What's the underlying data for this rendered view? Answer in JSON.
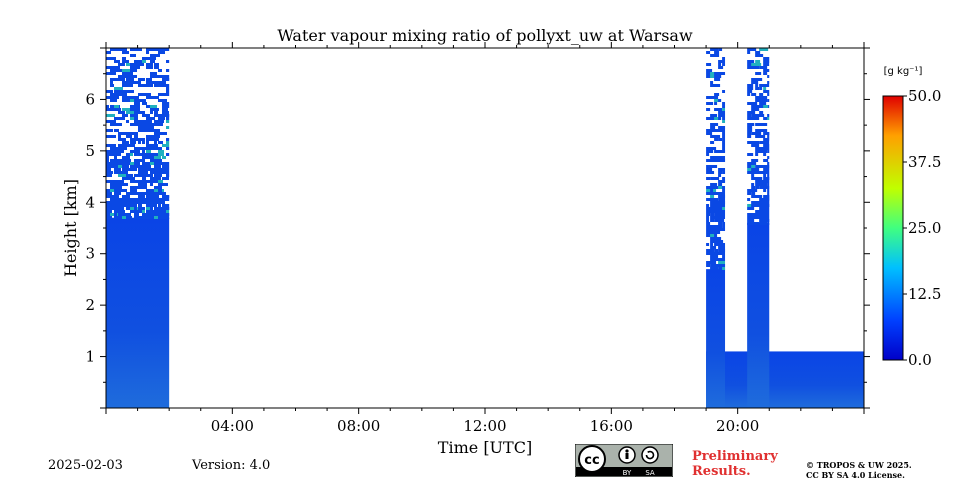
{
  "chart_data": {
    "type": "heatmap",
    "title": "Water vapour mixing ratio of pollyxt_uw at Warsaw",
    "xlabel": "Time [UTC]",
    "ylabel": "Height [km]",
    "xlim": [
      0,
      24
    ],
    "ylim": [
      0,
      7
    ],
    "x_ticks": [
      {
        "value": 4,
        "label": "04:00"
      },
      {
        "value": 8,
        "label": "08:00"
      },
      {
        "value": 12,
        "label": "12:00"
      },
      {
        "value": 16,
        "label": "16:00"
      },
      {
        "value": 20,
        "label": "20:00"
      }
    ],
    "y_ticks": [
      {
        "value": 1,
        "label": "1"
      },
      {
        "value": 2,
        "label": "2"
      },
      {
        "value": 3,
        "label": "3"
      },
      {
        "value": 4,
        "label": "4"
      },
      {
        "value": 5,
        "label": "5"
      },
      {
        "value": 6,
        "label": "6"
      }
    ],
    "colorbar": {
      "unit_label": "[g kg⁻¹]",
      "range": [
        0,
        50
      ],
      "ticks": [
        {
          "value": 0,
          "label": "0.0"
        },
        {
          "value": 12.5,
          "label": "12.5"
        },
        {
          "value": 25,
          "label": "25.0"
        },
        {
          "value": 37.5,
          "label": "37.5"
        },
        {
          "value": 50,
          "label": "50.0"
        }
      ],
      "colormap": "jet"
    },
    "data_regions": [
      {
        "name": "early-block",
        "x_start": 0,
        "x_end": 2.0,
        "solid_top_km": 3.7,
        "sparse_top_km": 7.0,
        "value": 3
      },
      {
        "name": "late-lower-block",
        "x_start": 19.0,
        "x_end": 24.0,
        "solid_top_km": 1.1,
        "value": 5
      },
      {
        "name": "late-column-1",
        "x_start": 19.0,
        "x_end": 19.6,
        "solid_top_km": 2.7,
        "sparse_top_km": 7.0,
        "value": 5
      },
      {
        "name": "late-column-2",
        "x_start": 20.3,
        "x_end": 21.0,
        "solid_top_km": 3.6,
        "sparse_top_km": 7.0,
        "value": 5
      }
    ]
  },
  "footer": {
    "date": "2025-02-03",
    "version": "Version: 4.0",
    "preliminary_line1": "Preliminary",
    "preliminary_line2": "Results.",
    "copyright_line1": "© TROPOS & UW 2025.",
    "copyright_line2": "CC BY SA 4.0 License.",
    "cc_by": "BY",
    "cc_sa": "SA"
  }
}
